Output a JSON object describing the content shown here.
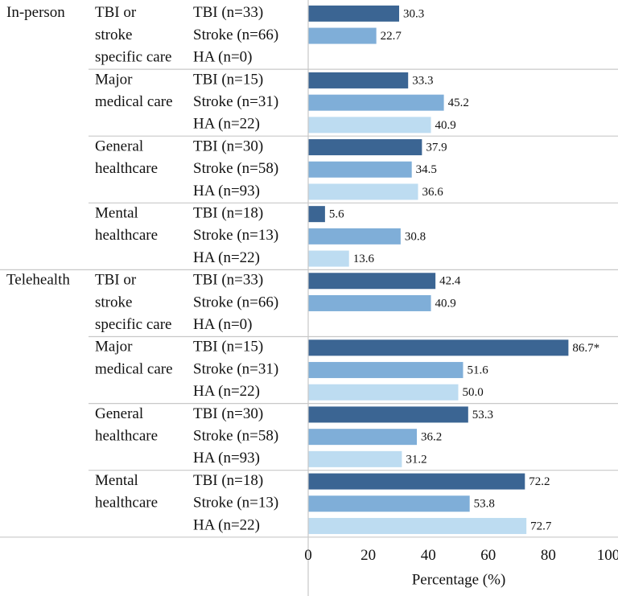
{
  "chart_data": {
    "type": "bar",
    "orientation": "horizontal",
    "x_label": "Percentage (%)",
    "xlim": [
      0,
      100
    ],
    "xticks": [
      0,
      20,
      40,
      60,
      80,
      100
    ],
    "colors": [
      "#3b6593",
      "#7faed8",
      "#bddcf1"
    ],
    "groups": [
      {
        "name": "In-person",
        "categories": [
          {
            "label_lines": [
              "TBI or",
              "stroke",
              "specific care"
            ],
            "rows": [
              "TBI (n=33)",
              "Stroke (n=66)",
              "HA (n=0)"
            ],
            "values": [
              30.3,
              22.7,
              null
            ],
            "value_labels": [
              "30.3",
              "22.7",
              null
            ]
          },
          {
            "label_lines": [
              "Major",
              "medical care"
            ],
            "rows": [
              "TBI (n=15)",
              "Stroke (n=31)",
              "HA (n=22)"
            ],
            "values": [
              33.3,
              45.2,
              40.9
            ],
            "value_labels": [
              "33.3",
              "45.2",
              "40.9"
            ]
          },
          {
            "label_lines": [
              "General",
              "healthcare"
            ],
            "rows": [
              "TBI (n=30)",
              "Stroke (n=58)",
              "HA (n=93)"
            ],
            "values": [
              37.9,
              34.5,
              36.6
            ],
            "value_labels": [
              "37.9",
              "34.5",
              "36.6"
            ]
          },
          {
            "label_lines": [
              "Mental",
              "healthcare"
            ],
            "rows": [
              "TBI (n=18)",
              "Stroke (n=13)",
              "HA (n=22)"
            ],
            "values": [
              5.6,
              30.8,
              13.6
            ],
            "value_labels": [
              "5.6",
              "30.8",
              "13.6"
            ]
          }
        ]
      },
      {
        "name": "Telehealth",
        "categories": [
          {
            "label_lines": [
              "TBI or",
              "stroke",
              "specific care"
            ],
            "rows": [
              "TBI (n=33)",
              "Stroke (n=66)",
              "HA (n=0)"
            ],
            "values": [
              42.4,
              40.9,
              null
            ],
            "value_labels": [
              "42.4",
              "40.9",
              null
            ]
          },
          {
            "label_lines": [
              "Major",
              "medical care"
            ],
            "rows": [
              "TBI (n=15)",
              "Stroke (n=31)",
              "HA (n=22)"
            ],
            "values": [
              86.7,
              51.6,
              50.0
            ],
            "value_labels": [
              "86.7*",
              "51.6",
              "50.0"
            ]
          },
          {
            "label_lines": [
              "General",
              "healthcare"
            ],
            "rows": [
              "TBI (n=30)",
              "Stroke (n=58)",
              "HA (n=93)"
            ],
            "values": [
              53.3,
              36.2,
              31.2
            ],
            "value_labels": [
              "53.3",
              "36.2",
              "31.2"
            ]
          },
          {
            "label_lines": [
              "Mental",
              "healthcare"
            ],
            "rows": [
              "TBI (n=18)",
              "Stroke (n=13)",
              "HA (n=22)"
            ],
            "values": [
              72.2,
              53.8,
              72.7
            ],
            "value_labels": [
              "72.2",
              "53.8",
              "72.7"
            ]
          }
        ]
      }
    ]
  }
}
